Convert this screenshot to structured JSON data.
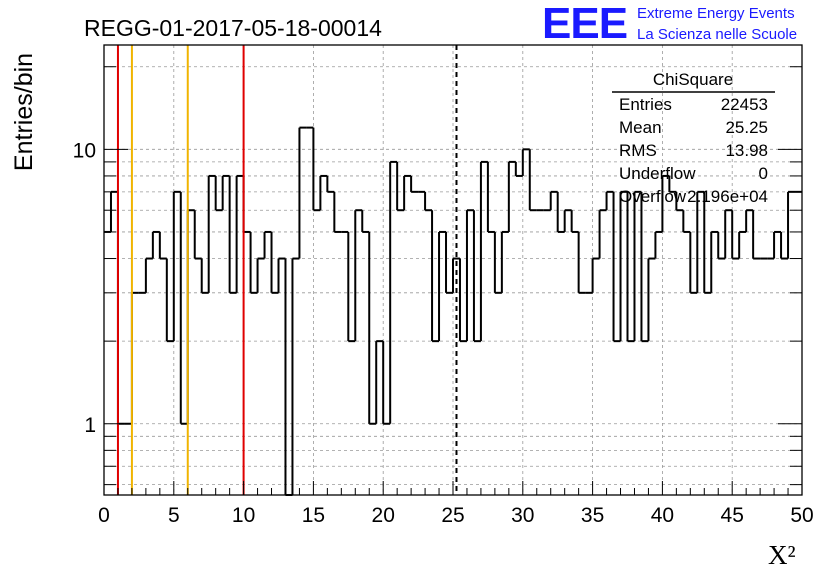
{
  "header": {
    "run_title": "REGG-01-2017-05-18-00014",
    "logo_text": "EEE",
    "logo_line1": "Extreme Energy Events",
    "logo_line2": "La Scienza nelle Scuole",
    "brand_color": "#1a1aff"
  },
  "stats_box": {
    "title": "ChiSquare",
    "rows": [
      {
        "label": "Entries",
        "value": "22453"
      },
      {
        "label": "Mean",
        "value": "25.25"
      },
      {
        "label": "RMS",
        "value": "13.98"
      },
      {
        "label": "Underflow",
        "value": "0"
      },
      {
        "label": "Overflow",
        "value": "2.196e+04"
      }
    ]
  },
  "chart_data": {
    "type": "histogram",
    "xlabel": "X²",
    "ylabel": "Entries/bin",
    "xlim": [
      0,
      50
    ],
    "ylim": [
      0.55,
      24
    ],
    "yscale": "log",
    "grid": true,
    "x_ticks": [
      "0",
      "5",
      "10",
      "15",
      "20",
      "25",
      "30",
      "35",
      "40",
      "45",
      "50"
    ],
    "y_ticks": [
      "1",
      "10"
    ],
    "bin_width": 0.5,
    "series": [
      {
        "values": [
          5,
          7,
          1,
          1,
          3,
          3,
          4,
          5,
          4,
          2,
          7,
          1,
          6,
          4,
          3,
          8,
          6,
          8,
          3,
          8,
          5,
          3,
          4,
          5,
          3,
          4,
          0,
          4,
          12,
          12,
          6,
          8,
          7,
          5,
          5,
          2,
          6,
          5,
          1,
          2,
          1,
          9,
          6,
          8,
          7,
          7,
          6,
          2,
          5,
          3,
          4,
          2,
          6,
          2,
          9,
          5,
          3,
          5,
          9,
          8,
          10,
          6,
          6,
          6,
          7,
          5,
          6,
          5,
          3,
          3,
          4,
          6,
          7,
          2,
          7,
          2,
          7,
          2,
          4,
          5,
          8,
          7,
          6,
          5,
          3,
          7,
          3,
          5,
          4,
          6,
          4,
          5,
          6,
          4,
          4,
          4,
          5,
          4,
          7,
          7
        ]
      }
    ],
    "vertical_lines": [
      {
        "x": 1,
        "color": "#e00000",
        "style": "solid"
      },
      {
        "x": 2,
        "color": "#f0b400",
        "style": "solid"
      },
      {
        "x": 6,
        "color": "#f0b400",
        "style": "solid"
      },
      {
        "x": 10,
        "color": "#e00000",
        "style": "solid"
      },
      {
        "x": 25.25,
        "color": "#000000",
        "style": "dashed"
      }
    ]
  }
}
